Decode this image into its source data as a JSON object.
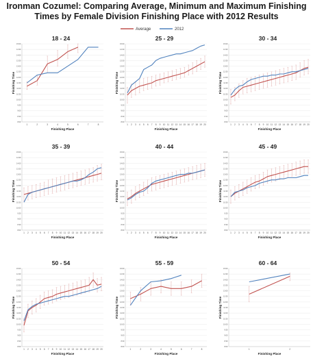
{
  "title": "Ironman Cozumel: Comparing Average, Minimum and Maximum Finishing Times by Female Division Finishing Place with 2012 Results",
  "legend": [
    {
      "name": "Average",
      "color": "#c0504d"
    },
    {
      "name": "2012",
      "color": "#4f81bd"
    }
  ],
  "colors": {
    "average": "#c0504d",
    "y2012": "#4f81bd",
    "errorbar": "#e6b9b8",
    "grid": "#e4e4e4"
  },
  "chart_data": [
    {
      "type": "line",
      "title": "18 - 24",
      "xlabel": "Finishing Place",
      "ylabel": "Finishing Time",
      "x": [
        1,
        2,
        3,
        4,
        5,
        6,
        7,
        8
      ],
      "ylim": [
        8,
        15
      ],
      "y_ticks": [
        "8:00",
        "8:30",
        "9:00",
        "9:30",
        "10:00",
        "10:30",
        "11:00",
        "11:30",
        "12:00",
        "12:30",
        "13:00",
        "13:30",
        "14:00",
        "14:30",
        "15:00"
      ],
      "series": [
        {
          "name": "Average",
          "values": [
            11.2,
            11.7,
            13.2,
            13.6,
            14.3,
            14.7,
            null,
            null
          ],
          "min": [
            10.9,
            11.3,
            12.4,
            13.0,
            13.7,
            14.2,
            null,
            null
          ],
          "max": [
            11.6,
            12.2,
            13.9,
            14.4,
            14.9,
            15.0,
            null,
            null
          ]
        },
        {
          "name": "2012",
          "values": [
            11.5,
            12.2,
            12.4,
            12.4,
            13.0,
            13.6,
            14.7,
            14.7
          ]
        }
      ]
    },
    {
      "type": "line",
      "title": "25 - 29",
      "xlabel": "Finishing Place",
      "ylabel": "Finishing Time",
      "x": [
        1,
        2,
        3,
        4,
        5,
        6,
        7,
        8,
        9,
        10,
        11,
        12,
        13,
        14,
        15,
        16,
        17,
        18,
        19,
        20
      ],
      "ylim": [
        8,
        15
      ],
      "y_ticks": [
        "8:00",
        "8:30",
        "9:00",
        "9:30",
        "10:00",
        "10:30",
        "11:00",
        "11:30",
        "12:00",
        "12:30",
        "13:00",
        "13:30",
        "14:00",
        "14:30",
        "15:00"
      ],
      "series": [
        {
          "name": "Average",
          "values": [
            10.4,
            10.8,
            11.0,
            11.2,
            11.3,
            11.4,
            11.5,
            11.7,
            11.8,
            11.9,
            12.0,
            12.1,
            12.2,
            12.3,
            12.4,
            12.6,
            12.8,
            13.0,
            13.2,
            13.4
          ],
          "min": [
            9.7,
            10.2,
            10.4,
            10.6,
            10.8,
            10.9,
            11.0,
            11.2,
            11.3,
            11.5,
            11.6,
            11.7,
            11.8,
            11.9,
            12.0,
            12.2,
            12.3,
            12.5,
            12.7,
            12.9
          ],
          "max": [
            11.1,
            11.4,
            11.6,
            11.8,
            11.9,
            12.0,
            12.1,
            12.2,
            12.3,
            12.4,
            12.5,
            12.6,
            12.7,
            12.8,
            12.9,
            13.1,
            13.3,
            13.5,
            13.7,
            13.9
          ]
        },
        {
          "name": "2012",
          "values": [
            10.6,
            11.3,
            11.6,
            11.9,
            12.7,
            12.9,
            13.1,
            13.5,
            13.7,
            13.8,
            13.9,
            14.0,
            14.1,
            14.1,
            14.2,
            14.3,
            14.4,
            14.6,
            14.8,
            14.9
          ]
        }
      ]
    },
    {
      "type": "line",
      "title": "30 - 34",
      "xlabel": "Finishing Place",
      "ylabel": "Finishing Time",
      "x": [
        1,
        2,
        3,
        4,
        5,
        6,
        7,
        8,
        9,
        10,
        11,
        12,
        13,
        14,
        15,
        16,
        17,
        18,
        19,
        20
      ],
      "ylim": [
        8,
        15
      ],
      "y_ticks": [
        "8:00",
        "8:30",
        "9:00",
        "9:30",
        "10:00",
        "10:30",
        "11:00",
        "11:30",
        "12:00",
        "12:30",
        "13:00",
        "13:30",
        "14:00",
        "14:30",
        "15:00"
      ],
      "series": [
        {
          "name": "Average",
          "values": [
            10.2,
            10.4,
            10.8,
            11.1,
            11.2,
            11.3,
            11.4,
            11.5,
            11.6,
            11.7,
            11.8,
            11.9,
            12.0,
            12.1,
            12.2,
            12.3,
            12.4,
            12.6,
            12.8,
            12.9
          ],
          "min": [
            9.6,
            9.9,
            10.2,
            10.5,
            10.6,
            10.7,
            10.8,
            10.9,
            11.0,
            11.1,
            11.2,
            11.3,
            11.4,
            11.5,
            11.6,
            11.7,
            11.8,
            12.0,
            12.2,
            12.3
          ],
          "max": [
            10.9,
            11.1,
            11.4,
            11.7,
            11.9,
            12.0,
            12.1,
            12.2,
            12.3,
            12.4,
            12.5,
            12.6,
            12.7,
            12.8,
            12.9,
            13.0,
            13.1,
            13.3,
            13.5,
            13.6
          ]
        },
        {
          "name": "2012",
          "values": [
            10.4,
            10.9,
            11.2,
            11.3,
            11.6,
            11.8,
            11.9,
            12.0,
            12.1,
            12.1,
            12.2,
            12.2,
            12.3,
            12.3,
            12.4,
            12.5,
            12.5,
            12.6,
            12.7,
            12.8
          ]
        }
      ]
    },
    {
      "type": "line",
      "title": "35 - 39",
      "xlabel": "Finishing Place",
      "ylabel": "Finishing Time",
      "x": [
        1,
        2,
        3,
        4,
        5,
        6,
        7,
        8,
        9,
        10,
        11,
        12,
        13,
        14,
        15,
        16,
        17,
        18,
        19,
        20
      ],
      "ylim": [
        8,
        15
      ],
      "y_ticks": [
        "8:00",
        "8:30",
        "9:00",
        "9:30",
        "10:00",
        "10:30",
        "11:00",
        "11:30",
        "12:00",
        "12:30",
        "13:00",
        "13:30",
        "14:00",
        "14:30",
        "15:00"
      ],
      "series": [
        {
          "name": "Average",
          "values": [
            11.2,
            11.3,
            11.4,
            11.5,
            11.6,
            11.7,
            11.8,
            11.9,
            12.0,
            12.1,
            12.2,
            12.3,
            12.4,
            12.5,
            12.6,
            12.7,
            12.8,
            12.9,
            13.0,
            13.1
          ],
          "min": [
            10.6,
            10.7,
            10.8,
            10.9,
            11.0,
            11.1,
            11.2,
            11.3,
            11.4,
            11.5,
            11.6,
            11.7,
            11.8,
            11.9,
            12.0,
            12.1,
            12.2,
            12.3,
            12.4,
            12.5
          ],
          "max": [
            11.8,
            11.9,
            12.0,
            12.1,
            12.2,
            12.3,
            12.5,
            12.6,
            12.7,
            12.8,
            12.9,
            13.0,
            13.1,
            13.2,
            13.3,
            13.4,
            13.5,
            13.6,
            13.8,
            13.9
          ]
        },
        {
          "name": "2012",
          "values": [
            10.5,
            11.2,
            11.4,
            11.5,
            11.6,
            11.7,
            11.8,
            11.9,
            12.0,
            12.1,
            12.2,
            12.3,
            12.4,
            12.4,
            12.5,
            12.7,
            13.0,
            13.2,
            13.5,
            13.6
          ]
        }
      ]
    },
    {
      "type": "line",
      "title": "40 - 44",
      "xlabel": "Finishing Place",
      "ylabel": "Finishing Time",
      "x": [
        1,
        2,
        3,
        4,
        5,
        6,
        7,
        8,
        9,
        10,
        11,
        12,
        13,
        14,
        15,
        16,
        17,
        18,
        19,
        20
      ],
      "ylim": [
        8,
        15
      ],
      "y_ticks": [
        "8:00",
        "8:30",
        "9:00",
        "9:30",
        "10:00",
        "10:30",
        "11:00",
        "11:30",
        "12:00",
        "12:30",
        "13:00",
        "13:30",
        "14:00",
        "14:30",
        "15:00"
      ],
      "series": [
        {
          "name": "Average",
          "values": [
            10.8,
            11.0,
            11.3,
            11.5,
            11.7,
            11.9,
            12.1,
            12.2,
            12.3,
            12.4,
            12.5,
            12.6,
            12.7,
            12.8,
            12.9,
            13.0,
            13.1,
            13.2,
            13.3,
            13.4
          ],
          "min": [
            10.2,
            10.4,
            10.7,
            10.9,
            11.1,
            11.3,
            11.5,
            11.6,
            11.7,
            11.8,
            11.9,
            12.0,
            12.1,
            12.2,
            12.3,
            12.4,
            12.5,
            12.6,
            12.7,
            12.8
          ],
          "max": [
            11.4,
            11.6,
            11.9,
            12.1,
            12.3,
            12.5,
            12.7,
            12.8,
            12.9,
            13.0,
            13.1,
            13.2,
            13.3,
            13.4,
            13.5,
            13.6,
            13.7,
            13.8,
            13.9,
            14.0
          ]
        },
        {
          "name": "2012",
          "values": [
            10.7,
            10.9,
            11.2,
            11.4,
            11.5,
            11.8,
            12.2,
            12.4,
            12.5,
            12.6,
            12.7,
            12.8,
            12.9,
            13.0,
            13.0,
            13.1,
            13.1,
            13.2,
            13.3,
            13.4
          ]
        }
      ]
    },
    {
      "type": "line",
      "title": "45 - 49",
      "xlabel": "Finishing Place",
      "ylabel": "Finishing Time",
      "x": [
        1,
        2,
        3,
        4,
        5,
        6,
        7,
        8,
        9,
        10,
        11,
        12,
        13,
        14,
        15,
        16,
        17,
        18,
        19,
        20
      ],
      "ylim": [
        8,
        15
      ],
      "y_ticks": [
        "8:00",
        "8:30",
        "9:00",
        "9:30",
        "10:00",
        "10:30",
        "11:00",
        "11:30",
        "12:00",
        "12:30",
        "13:00",
        "13:30",
        "14:00",
        "14:30",
        "15:00"
      ],
      "series": [
        {
          "name": "Average",
          "values": [
            11.0,
            11.3,
            11.5,
            11.7,
            11.9,
            12.1,
            12.3,
            12.4,
            12.6,
            12.8,
            12.9,
            13.0,
            13.1,
            13.2,
            13.3,
            13.4,
            13.5,
            13.6,
            13.7,
            13.7
          ],
          "min": [
            10.4,
            10.7,
            10.9,
            11.1,
            11.3,
            11.5,
            11.7,
            11.8,
            12.0,
            12.2,
            12.3,
            12.4,
            12.5,
            12.6,
            12.7,
            12.8,
            12.9,
            13.0,
            13.1,
            13.1
          ],
          "max": [
            11.6,
            11.9,
            12.1,
            12.3,
            12.5,
            12.7,
            12.9,
            13.0,
            13.2,
            13.4,
            13.5,
            13.6,
            13.7,
            13.8,
            13.9,
            14.0,
            14.1,
            14.2,
            14.3,
            14.3
          ]
        },
        {
          "name": "2012",
          "values": [
            11.0,
            11.4,
            11.5,
            11.6,
            11.8,
            11.9,
            12.0,
            12.2,
            12.3,
            12.4,
            12.5,
            12.5,
            12.6,
            12.6,
            12.7,
            12.7,
            12.7,
            12.8,
            12.9,
            12.9
          ]
        }
      ]
    },
    {
      "type": "line",
      "title": "50 - 54",
      "xlabel": "Finishing Place",
      "ylabel": "Finishing Time",
      "x": [
        1,
        2,
        3,
        4,
        5,
        6,
        7,
        8,
        9,
        10,
        11,
        12,
        13,
        14,
        15,
        16,
        17,
        18,
        19,
        20
      ],
      "ylim": [
        8,
        15
      ],
      "y_ticks": [
        "8:00",
        "8:30",
        "9:00",
        "9:30",
        "10:00",
        "10:30",
        "11:00",
        "11:30",
        "12:00",
        "12:30",
        "13:00",
        "13:30",
        "14:00",
        "14:30",
        "15:00"
      ],
      "series": [
        {
          "name": "Average",
          "values": [
            9.9,
            11.2,
            11.5,
            11.7,
            12.0,
            12.3,
            12.4,
            12.5,
            12.7,
            12.8,
            12.9,
            13.0,
            13.1,
            13.2,
            13.3,
            13.4,
            13.5,
            14.0,
            13.5,
            13.6
          ],
          "min": [
            9.3,
            10.6,
            10.9,
            11.1,
            11.4,
            11.7,
            11.8,
            11.9,
            12.1,
            12.2,
            12.3,
            12.4,
            12.5,
            12.6,
            12.7,
            12.8,
            12.9,
            13.3,
            12.9,
            13.0
          ],
          "max": [
            10.5,
            11.8,
            12.1,
            12.3,
            12.6,
            12.9,
            13.0,
            13.1,
            13.3,
            13.4,
            13.5,
            13.6,
            13.7,
            13.8,
            13.9,
            14.0,
            14.2,
            14.6,
            14.1,
            14.2
          ]
        },
        {
          "name": "2012",
          "values": [
            10.3,
            11.3,
            11.6,
            11.8,
            11.9,
            12.0,
            12.1,
            12.2,
            12.3,
            12.4,
            12.5,
            12.5,
            12.6,
            12.7,
            12.8,
            12.9,
            13.0,
            13.1,
            13.2,
            13.4
          ]
        }
      ]
    },
    {
      "type": "line",
      "title": "55 - 59",
      "xlabel": "Finishing Place",
      "ylabel": "Finishing Time",
      "x": [
        1,
        2,
        3,
        4,
        5,
        6,
        7,
        8
      ],
      "ylim": [
        8,
        15
      ],
      "y_ticks": [
        "8:00",
        "8:30",
        "9:00",
        "9:30",
        "10:00",
        "10:30",
        "11:00",
        "11:30",
        "12:00",
        "12:30",
        "13:00",
        "13:30",
        "14:00",
        "14:30",
        "15:00"
      ],
      "series": [
        {
          "name": "Average",
          "values": [
            12.3,
            12.7,
            13.2,
            13.4,
            13.2,
            13.2,
            13.4,
            13.9
          ],
          "min": [
            11.7,
            12.1,
            12.6,
            12.8,
            12.6,
            12.6,
            12.8,
            13.3
          ],
          "max": [
            12.9,
            13.3,
            13.8,
            14.0,
            13.8,
            13.8,
            14.0,
            14.5
          ]
        },
        {
          "name": "2012",
          "values": [
            11.7,
            13.0,
            13.8,
            13.9,
            14.1,
            14.4,
            null,
            null
          ]
        }
      ]
    },
    {
      "type": "line",
      "title": "60 - 64",
      "xlabel": "Finishing Place",
      "ylabel": "Finishing Time",
      "x": [
        1,
        2
      ],
      "ylim": [
        8,
        15
      ],
      "y_ticks": [
        "8:00",
        "8:30",
        "9:00",
        "9:30",
        "10:00",
        "10:30",
        "11:00",
        "11:30",
        "12:00",
        "12:30",
        "13:00",
        "13:30",
        "14:00",
        "14:30",
        "15:00"
      ],
      "series": [
        {
          "name": "Average",
          "values": [
            12.7,
            14.3
          ],
          "min": [
            12.0,
            13.9
          ],
          "max": [
            13.4,
            14.6
          ]
        },
        {
          "name": "2012",
          "values": [
            13.8,
            14.5
          ]
        }
      ]
    }
  ]
}
